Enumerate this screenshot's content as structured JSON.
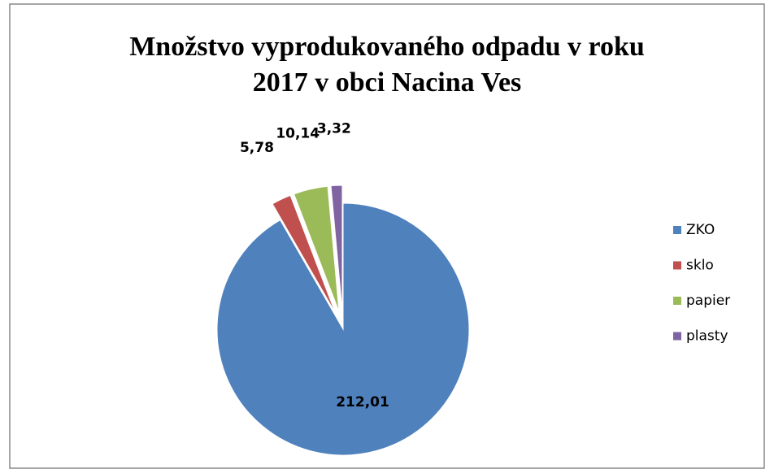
{
  "chart_data": {
    "type": "pie",
    "title": [
      "Množstvo vyprodukovaného odpadu v roku",
      "2017 v obci Nacina Ves"
    ],
    "categories": [
      "ZKO",
      "sklo",
      "papier",
      "plasty"
    ],
    "values": [
      212.01,
      5.78,
      10.14,
      3.32
    ],
    "value_labels": [
      "212,01",
      "5,78",
      "10,14",
      "3,32"
    ],
    "colors": [
      "#4f81bd",
      "#c0504d",
      "#9bbb59",
      "#8064a2"
    ],
    "legend": "right"
  }
}
